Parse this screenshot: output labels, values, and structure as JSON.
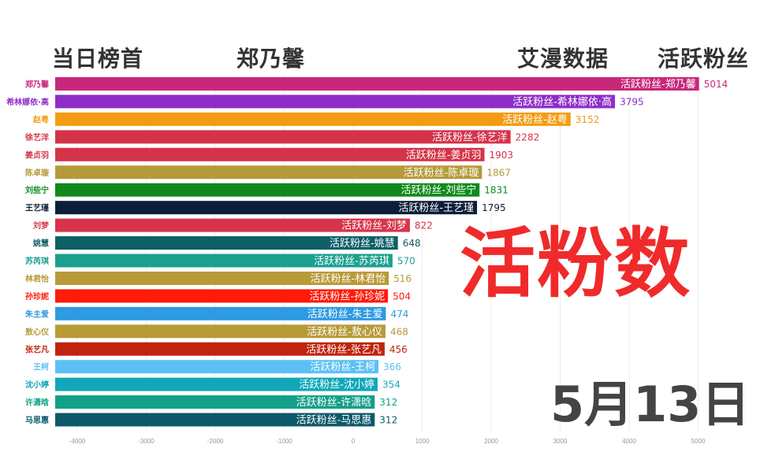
{
  "header": {
    "top_label": "当日榜首",
    "top_name": "郑乃馨",
    "source": "艾漫数据",
    "metric": "活跃粉丝"
  },
  "overlay_title": "活粉数",
  "date": "5月13日",
  "chart_data": {
    "type": "bar",
    "orientation": "horizontal",
    "bar_label_prefix": "活跃粉丝-",
    "categories": [
      "郑乃馨",
      "希林娜依·高",
      "赵粤",
      "徐艺洋",
      "姜贞羽",
      "陈卓璇",
      "刘些宁",
      "王艺瑾",
      "刘梦",
      "姚慧",
      "苏芮琪",
      "林君怡",
      "孙珍妮",
      "朱主爱",
      "敖心仪",
      "张艺凡",
      "王柯",
      "沈小婷",
      "许潇晗",
      "马思惠"
    ],
    "values": [
      5014,
      3795,
      3152,
      2282,
      1903,
      1867,
      1831,
      1795,
      822,
      648,
      570,
      516,
      504,
      474,
      468,
      456,
      366,
      354,
      312,
      312
    ],
    "colors": [
      "#c8287a",
      "#8e2ec8",
      "#f39c12",
      "#d4344a",
      "#d43348",
      "#b59a3a",
      "#0f8a1a",
      "#0c1f3a",
      "#d6344a",
      "#0e5f66",
      "#1aa08e",
      "#b89a38",
      "#ff1a0a",
      "#2e9ae0",
      "#b89a38",
      "#c0240e",
      "#5cc0f5",
      "#10a8b8",
      "#12a088",
      "#0c5a68"
    ],
    "xticks": [
      -4000,
      -3000,
      -2000,
      -1000,
      0,
      1000,
      2000,
      3000,
      4000,
      5000
    ],
    "xlim": [
      -4320,
      5500
    ],
    "grid": true
  }
}
